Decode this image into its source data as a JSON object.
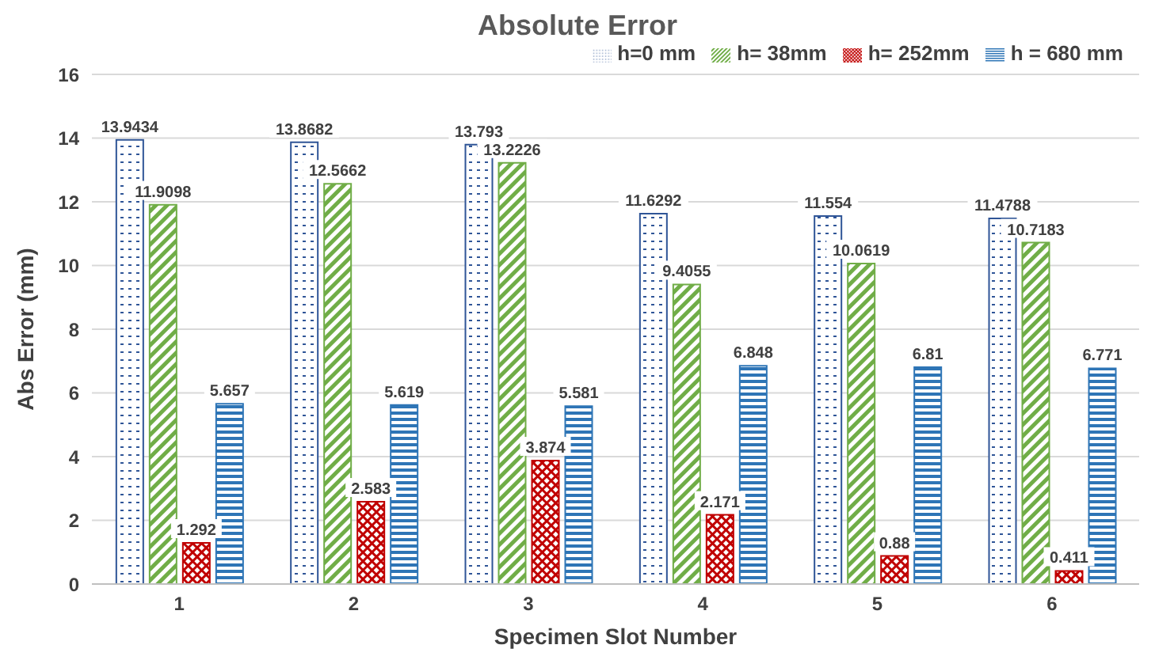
{
  "chart_data": {
    "type": "bar",
    "title": "Absolute Error",
    "xlabel": "Specimen Slot Number",
    "ylabel": "Abs Error (mm)",
    "categories": [
      "1",
      "2",
      "3",
      "4",
      "5",
      "6"
    ],
    "series": [
      {
        "name": "h=0 mm",
        "color": "#2f5597",
        "values": [
          13.9434,
          13.8682,
          13.793,
          11.6292,
          11.554,
          11.4788
        ]
      },
      {
        "name": "h= 38mm",
        "color": "#70ad47",
        "values": [
          11.9098,
          12.5662,
          13.2226,
          9.4055,
          10.0619,
          10.7183
        ]
      },
      {
        "name": "h= 252mm",
        "color": "#c00000",
        "values": [
          1.292,
          2.583,
          3.874,
          2.171,
          0.88,
          0.411
        ]
      },
      {
        "name": "h = 680 mm",
        "color": "#2e75b6",
        "values": [
          5.657,
          5.619,
          5.581,
          6.848,
          6.81,
          6.771
        ]
      }
    ],
    "ylim": [
      0,
      16
    ],
    "yticks": [
      0,
      2,
      4,
      6,
      8,
      10,
      12,
      14,
      16
    ],
    "grid": "y",
    "legend": "top right",
    "data_labels": true
  }
}
